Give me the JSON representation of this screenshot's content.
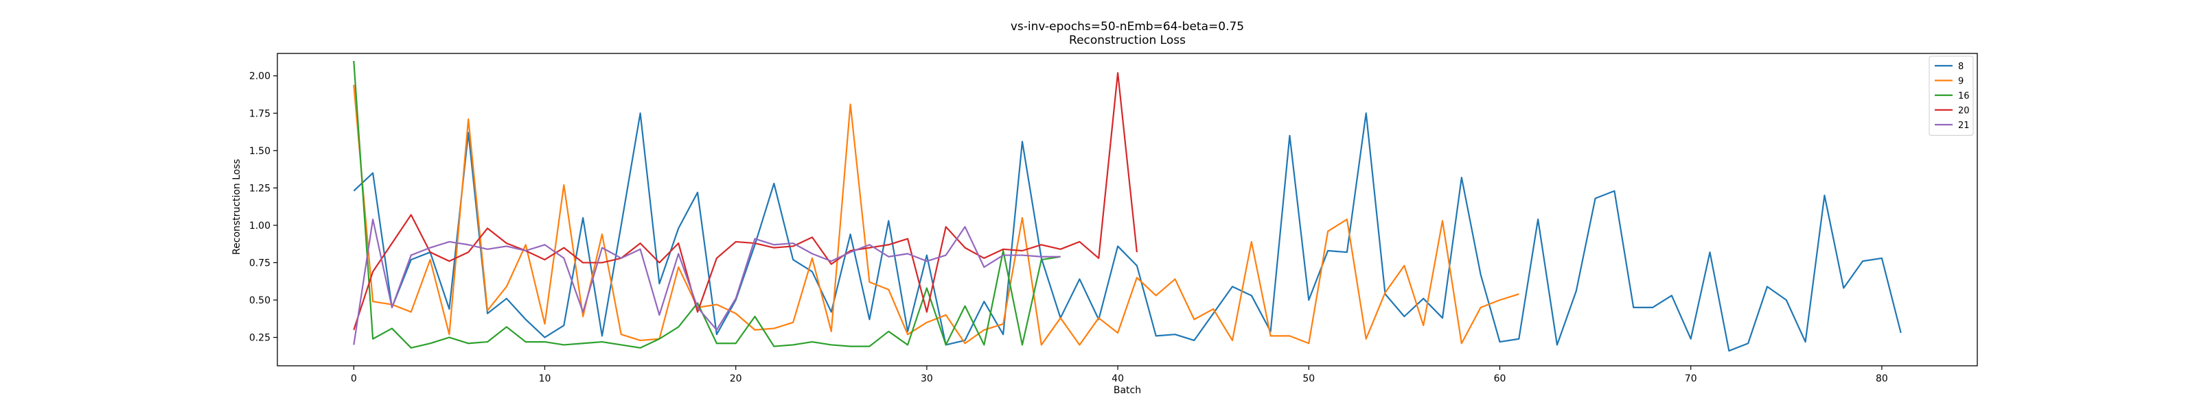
{
  "chart_data": {
    "type": "line",
    "title": "vs-inv-epochs=50-nEmb=64-beta=0.75",
    "subtitle": "Reconstruction Loss",
    "xlabel": "Batch",
    "ylabel": "Reconstruction Loss",
    "xlim": [
      -4,
      85
    ],
    "ylim": [
      0.06,
      2.15
    ],
    "xticks": [
      0,
      10,
      20,
      30,
      40,
      50,
      60,
      70,
      80
    ],
    "yticks": [
      0.25,
      0.5,
      0.75,
      1.0,
      1.25,
      1.5,
      1.75,
      2.0
    ],
    "ytick_labels": [
      "0.25",
      "0.50",
      "0.75",
      "1.00",
      "1.25",
      "1.50",
      "1.75",
      "2.00"
    ],
    "grid": false,
    "legend_position": "top-right",
    "series": [
      {
        "name": "8",
        "color": "#1f77b4",
        "values": [
          1.23,
          1.35,
          0.45,
          0.77,
          0.82,
          0.44,
          1.62,
          0.41,
          0.51,
          0.37,
          0.25,
          0.33,
          1.05,
          0.26,
          1.0,
          1.75,
          0.61,
          0.98,
          1.22,
          0.27,
          0.5,
          0.87,
          1.28,
          0.77,
          0.69,
          0.42,
          0.94,
          0.37,
          1.03,
          0.29,
          0.8,
          0.2,
          0.23,
          0.49,
          0.27,
          1.56,
          0.78,
          0.38,
          0.64,
          0.37,
          0.86,
          0.73,
          0.26,
          0.27,
          0.23,
          0.41,
          0.59,
          0.53,
          0.29,
          1.6,
          0.5,
          0.83,
          0.82,
          1.75,
          0.54,
          0.39,
          0.51,
          0.38,
          1.32,
          0.67,
          0.22,
          0.24,
          1.04,
          0.2,
          0.56,
          1.18,
          1.23,
          0.45,
          0.45,
          0.53,
          0.24,
          0.82,
          0.16,
          0.21,
          0.59,
          0.5,
          0.22,
          1.2,
          0.58,
          0.76,
          0.78,
          0.28
        ]
      },
      {
        "name": "9",
        "color": "#ff7f0e",
        "values": [
          1.94,
          0.49,
          0.47,
          0.42,
          0.77,
          0.27,
          1.71,
          0.43,
          0.59,
          0.87,
          0.34,
          1.27,
          0.39,
          0.94,
          0.27,
          0.23,
          0.24,
          0.72,
          0.45,
          0.47,
          0.41,
          0.3,
          0.31,
          0.35,
          0.78,
          0.29,
          1.81,
          0.62,
          0.57,
          0.27,
          0.35,
          0.4,
          0.21,
          0.3,
          0.34,
          1.05,
          0.2,
          0.38,
          0.2,
          0.38,
          0.28,
          0.65,
          0.53,
          0.64,
          0.37,
          0.44,
          0.23,
          0.89,
          0.26,
          0.26,
          0.21,
          0.96,
          1.04,
          0.24,
          0.55,
          0.73,
          0.33,
          1.03,
          0.21,
          0.45,
          0.5,
          0.54
        ]
      },
      {
        "name": "16",
        "color": "#2ca02c",
        "values": [
          2.1,
          0.24,
          0.31,
          0.18,
          0.21,
          0.25,
          0.21,
          0.22,
          0.32,
          0.22,
          0.22,
          0.2,
          0.21,
          0.22,
          0.2,
          0.18,
          0.24,
          0.32,
          0.48,
          0.21,
          0.21,
          0.39,
          0.19,
          0.2,
          0.22,
          0.2,
          0.19,
          0.19,
          0.29,
          0.2,
          0.58,
          0.2,
          0.46,
          0.2,
          0.83,
          0.2,
          0.77,
          0.79
        ]
      },
      {
        "name": "20",
        "color": "#d62728",
        "values": [
          0.3,
          0.69,
          0.88,
          1.07,
          0.82,
          0.76,
          0.82,
          0.98,
          0.88,
          0.83,
          0.77,
          0.85,
          0.75,
          0.75,
          0.78,
          0.88,
          0.75,
          0.88,
          0.42,
          0.78,
          0.89,
          0.88,
          0.85,
          0.86,
          0.92,
          0.74,
          0.83,
          0.85,
          0.87,
          0.91,
          0.42,
          0.99,
          0.85,
          0.78,
          0.84,
          0.83,
          0.87,
          0.84,
          0.89,
          0.78,
          2.02,
          0.82
        ]
      },
      {
        "name": "21",
        "color": "#9467bd",
        "values": [
          0.2,
          1.04,
          0.45,
          0.8,
          0.85,
          0.89,
          0.87,
          0.84,
          0.86,
          0.83,
          0.87,
          0.78,
          0.42,
          0.85,
          0.78,
          0.84,
          0.4,
          0.81,
          0.45,
          0.3,
          0.51,
          0.91,
          0.87,
          0.88,
          0.81,
          0.76,
          0.82,
          0.87,
          0.79,
          0.81,
          0.76,
          0.8,
          0.99,
          0.72,
          0.8,
          0.8,
          0.79,
          0.79
        ]
      }
    ]
  }
}
